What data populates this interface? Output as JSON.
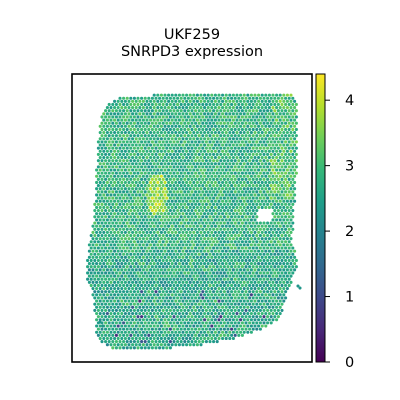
{
  "chart_data": {
    "type": "scatter",
    "title": [
      "UKF259",
      "SNRPD3 expression"
    ],
    "xlabel": "",
    "ylabel": "",
    "colorbar": {
      "colormap": "viridis",
      "vmin": 0,
      "vmax": 4.4,
      "ticks": [
        "0",
        "1",
        "2",
        "3",
        "4"
      ]
    },
    "stops": [
      "#440154",
      "#482878",
      "#3e4989",
      "#31688e",
      "#26828e",
      "#1f9e89",
      "#35b779",
      "#6ece58",
      "#b5de2b",
      "#fde725"
    ],
    "typical_value": 2.8
  }
}
